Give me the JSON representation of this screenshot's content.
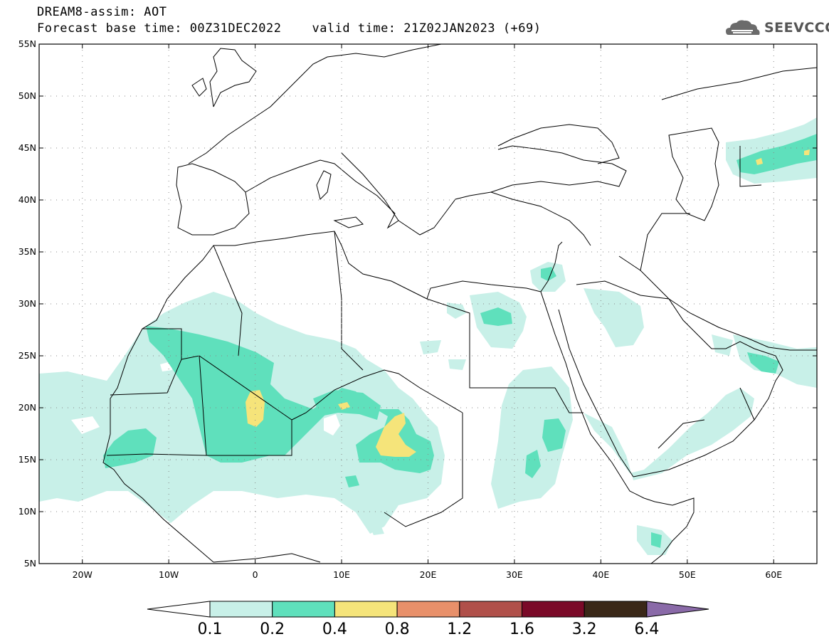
{
  "title": {
    "line1": "DREAM8-assim: AOT",
    "line2": "Forecast base time: 00Z31DEC2022    valid time: 21Z02JAN2023 (+69)"
  },
  "logo": {
    "text": "SEEVCCC",
    "icon": "cloud-icon"
  },
  "map": {
    "lon_range": [
      -25,
      65
    ],
    "lat_range": [
      5,
      55
    ],
    "lat_labels": [
      "5N",
      "10N",
      "15N",
      "20N",
      "25N",
      "30N",
      "35N",
      "40N",
      "45N",
      "50N",
      "55N"
    ],
    "lon_labels": [
      "20W",
      "10W",
      "0",
      "10E",
      "20E",
      "30E",
      "40E",
      "50E",
      "60E"
    ],
    "gridlines": "dotted"
  },
  "colorbar": {
    "boundaries": [
      "0.1",
      "0.2",
      "0.4",
      "0.8",
      "1.2",
      "1.6",
      "3.2",
      "6.4"
    ],
    "colors": [
      "#ffffff",
      "#c8f0e8",
      "#5fe0bc",
      "#f5e47a",
      "#e8906a",
      "#b0504a",
      "#7a0a28",
      "#3a2818",
      "#8a6aa8"
    ]
  }
}
